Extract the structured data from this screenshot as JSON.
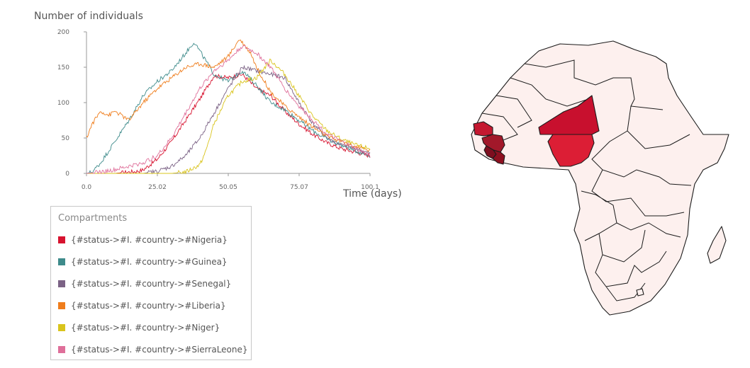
{
  "chart_data": {
    "type": "line",
    "ylabel": "Number of individuals",
    "xlabel": "Time (days)",
    "xlim": [
      0,
      100.1
    ],
    "ylim": [
      0,
      200
    ],
    "xticks": [
      "0.0",
      "25.02",
      "50.05",
      "75.07",
      "100.1"
    ],
    "yticks": [
      "0",
      "50",
      "100",
      "150",
      "200"
    ],
    "legend_title": "Compartments",
    "series": [
      {
        "name": "{#status->#I. #country->#Nigeria}",
        "color": "#d7132f",
        "x": [
          0,
          10,
          15,
          18,
          20,
          25,
          30,
          35,
          40,
          43,
          45,
          50,
          55,
          60,
          65,
          70,
          75,
          80,
          85,
          90,
          95,
          100.1
        ],
        "y": [
          0,
          0,
          2,
          3,
          5,
          20,
          45,
          75,
          105,
          125,
          138,
          135,
          140,
          120,
          110,
          88,
          70,
          55,
          43,
          35,
          30,
          25
        ]
      },
      {
        "name": "{#status->#I. #country->#Guinea}",
        "color": "#3e8b8b",
        "x": [
          0,
          2,
          5,
          10,
          15,
          20,
          25,
          30,
          35,
          38,
          42,
          45,
          50,
          55,
          60,
          65,
          70,
          75,
          80,
          85,
          90,
          95,
          100.1
        ],
        "y": [
          0,
          2,
          15,
          45,
          75,
          110,
          130,
          145,
          170,
          186,
          160,
          140,
          130,
          145,
          125,
          100,
          90,
          75,
          60,
          48,
          40,
          32,
          25
        ]
      },
      {
        "name": "{#status->#I. #country->#Senegal}",
        "color": "#7b6285",
        "x": [
          0,
          10,
          15,
          20,
          25,
          30,
          35,
          40,
          45,
          50,
          55,
          60,
          65,
          70,
          75,
          80,
          85,
          90,
          95,
          100.1
        ],
        "y": [
          0,
          0,
          0,
          0,
          3,
          10,
          25,
          50,
          85,
          120,
          150,
          145,
          140,
          135,
          100,
          70,
          50,
          40,
          35,
          28
        ]
      },
      {
        "name": "{#status->#I. #country->#Liberia}",
        "color": "#ef7d1c",
        "x": [
          0,
          2,
          5,
          8,
          10,
          15,
          20,
          25,
          30,
          35,
          40,
          45,
          50,
          54,
          58,
          60,
          65,
          70,
          75,
          80,
          85,
          90,
          95,
          100.1
        ],
        "y": [
          50,
          70,
          88,
          82,
          88,
          75,
          100,
          120,
          135,
          150,
          155,
          150,
          165,
          190,
          170,
          150,
          115,
          95,
          80,
          65,
          52,
          45,
          38,
          32
        ]
      },
      {
        "name": "{#status->#I. #country->#Niger}",
        "color": "#d9c41c",
        "x": [
          0,
          20,
          25,
          30,
          35,
          40,
          42,
          45,
          50,
          55,
          60,
          65,
          70,
          75,
          80,
          85,
          90,
          95,
          100.1
        ],
        "y": [
          0,
          0,
          0,
          0,
          2,
          12,
          30,
          70,
          110,
          130,
          135,
          160,
          140,
          110,
          80,
          60,
          48,
          40,
          35
        ]
      },
      {
        "name": "{#status->#I. #country->#SierraLeone}",
        "color": "#df6f9a",
        "x": [
          0,
          5,
          10,
          15,
          20,
          25,
          30,
          35,
          40,
          45,
          50,
          55,
          60,
          65,
          70,
          75,
          80,
          85,
          90,
          95,
          100.1
        ],
        "y": [
          0,
          2,
          5,
          10,
          15,
          25,
          50,
          85,
          120,
          145,
          160,
          180,
          170,
          150,
          120,
          95,
          75,
          55,
          45,
          35,
          25
        ]
      }
    ]
  }
}
